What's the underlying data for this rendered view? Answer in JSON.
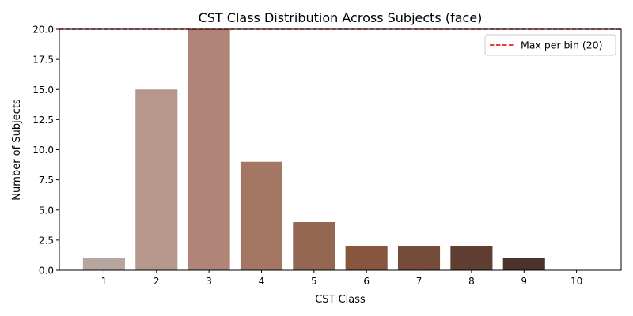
{
  "chart_data": {
    "type": "bar",
    "title": "CST Class Distribution Across Subjects (face)",
    "xlabel": "CST Class",
    "ylabel": "Number of Subjects",
    "categories": [
      "1",
      "2",
      "3",
      "4",
      "5",
      "6",
      "7",
      "8",
      "9",
      "10"
    ],
    "values": [
      1,
      15,
      20,
      9,
      4,
      2,
      2,
      2,
      1,
      0
    ],
    "bar_colors": [
      "#b7a59f",
      "#b5978c",
      "#b08477",
      "#a37764",
      "#946752",
      "#86563f",
      "#754c39",
      "#603e32",
      "#4a3328",
      "#3a2a22"
    ],
    "ylim": [
      0,
      20
    ],
    "yticks": [
      0.0,
      2.5,
      5.0,
      7.5,
      10.0,
      12.5,
      15.0,
      17.5,
      20.0
    ],
    "ytick_labels": [
      "0.0",
      "2.5",
      "5.0",
      "7.5",
      "10.0",
      "12.5",
      "15.0",
      "17.5",
      "20.0"
    ],
    "reference_line": {
      "value": 20,
      "label": "Max per bin (20)",
      "color": "#e00000",
      "style": "dashed"
    },
    "legend_position": "top-right",
    "grid": false
  }
}
